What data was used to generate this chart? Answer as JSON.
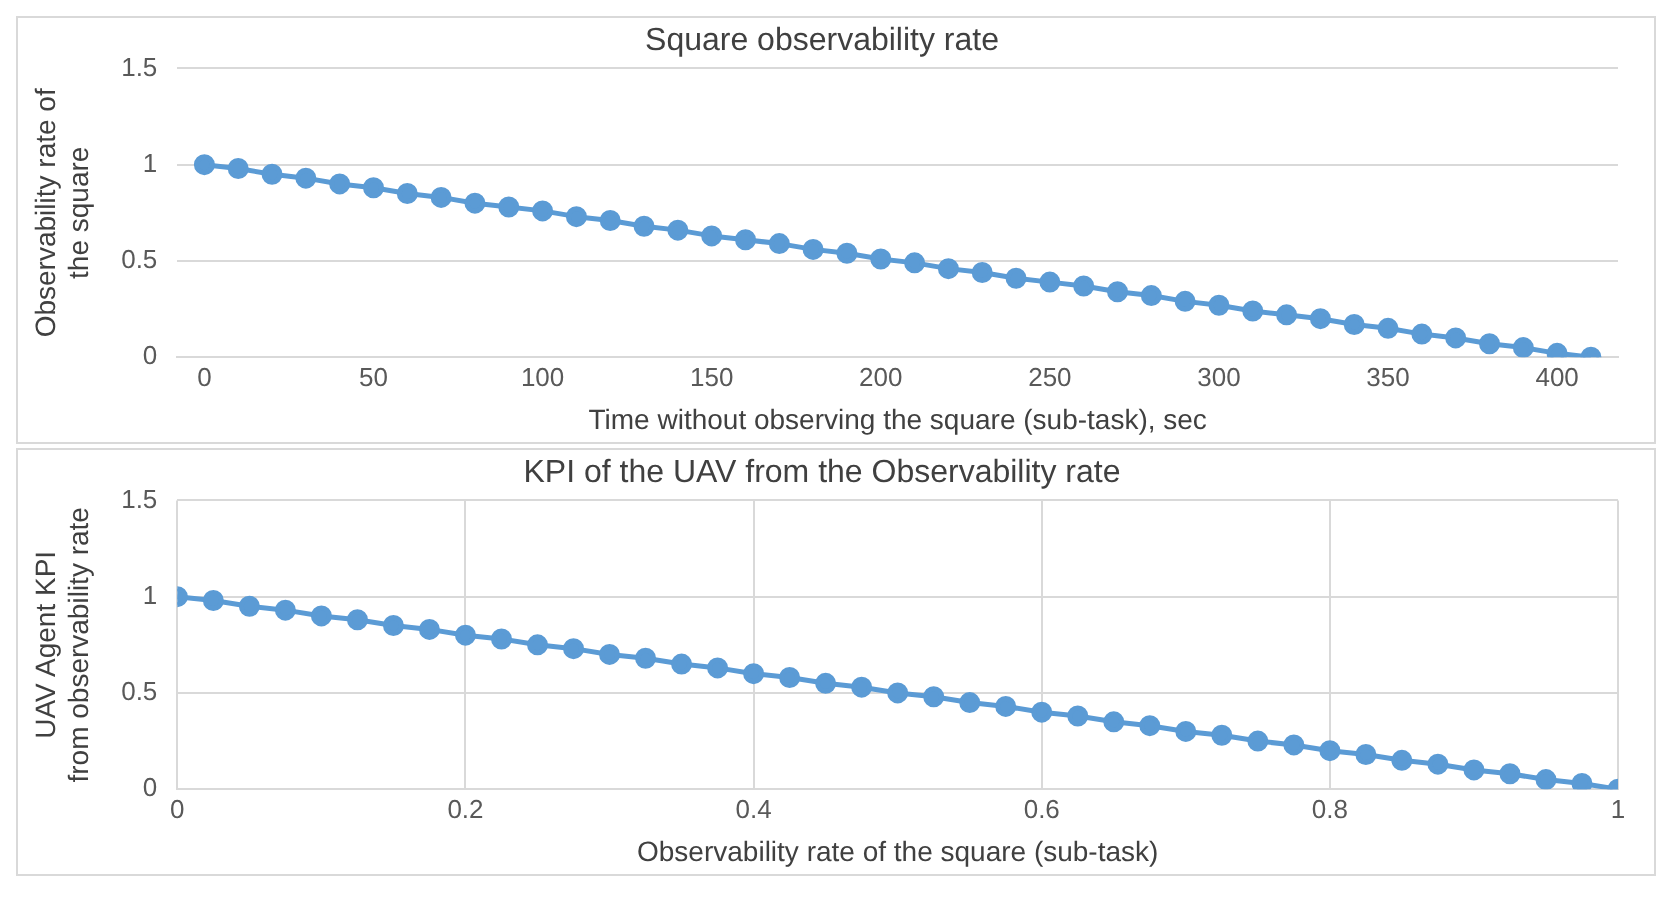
{
  "chart_data": [
    {
      "type": "line",
      "title": "Square observability rate",
      "xlabel": "Time without observing the square (sub-task), sec",
      "ylabel": "Observability rate of the square",
      "x": [
        0,
        10,
        20,
        30,
        40,
        50,
        60,
        70,
        80,
        90,
        100,
        110,
        120,
        130,
        140,
        150,
        160,
        170,
        180,
        190,
        200,
        210,
        220,
        230,
        240,
        250,
        260,
        270,
        280,
        290,
        300,
        310,
        320,
        330,
        340,
        350,
        360,
        370,
        380,
        390,
        400,
        410
      ],
      "series": [
        {
          "color": "#5b9bd5",
          "values": [
            1,
            0.98,
            0.95,
            0.93,
            0.9,
            0.88,
            0.85,
            0.83,
            0.8,
            0.78,
            0.76,
            0.73,
            0.71,
            0.68,
            0.66,
            0.63,
            0.61,
            0.59,
            0.56,
            0.54,
            0.51,
            0.49,
            0.46,
            0.44,
            0.41,
            0.39,
            0.37,
            0.34,
            0.32,
            0.29,
            0.27,
            0.24,
            0.22,
            0.2,
            0.17,
            0.15,
            0.12,
            0.1,
            0.07,
            0.05,
            0.02,
            0
          ]
        }
      ],
      "xlim": [
        -8,
        418
      ],
      "xticks": [
        0,
        50,
        100,
        150,
        200,
        250,
        300,
        350,
        400
      ],
      "ylim": [
        0,
        1.5
      ],
      "yticks": [
        0,
        0.5,
        1,
        1.5
      ],
      "grid": "y",
      "legend": false,
      "marker": "circle",
      "line_style": "solid"
    },
    {
      "type": "line",
      "title": "KPI of the UAV from the Observability rate",
      "xlabel": "Observability rate of the square (sub-task)",
      "ylabel": "UAV Agent KPI from observability rate",
      "x": [
        0,
        0.025,
        0.05,
        0.075,
        0.1,
        0.125,
        0.15,
        0.175,
        0.2,
        0.225,
        0.25,
        0.275,
        0.3,
        0.325,
        0.35,
        0.375,
        0.4,
        0.425,
        0.45,
        0.475,
        0.5,
        0.525,
        0.55,
        0.575,
        0.6,
        0.625,
        0.65,
        0.675,
        0.7,
        0.725,
        0.75,
        0.775,
        0.8,
        0.825,
        0.85,
        0.875,
        0.9,
        0.925,
        0.95,
        0.975,
        1
      ],
      "series": [
        {
          "color": "#5b9bd5",
          "values": [
            1,
            0.98,
            0.95,
            0.93,
            0.9,
            0.88,
            0.85,
            0.83,
            0.8,
            0.78,
            0.75,
            0.73,
            0.7,
            0.68,
            0.65,
            0.63,
            0.6,
            0.58,
            0.55,
            0.53,
            0.5,
            0.48,
            0.45,
            0.43,
            0.4,
            0.38,
            0.35,
            0.33,
            0.3,
            0.28,
            0.25,
            0.23,
            0.2,
            0.18,
            0.15,
            0.13,
            0.1,
            0.08,
            0.05,
            0.03,
            0
          ]
        }
      ],
      "xlim": [
        0,
        1
      ],
      "xticks": [
        0,
        0.2,
        0.4,
        0.6,
        0.8,
        1
      ],
      "ylim": [
        0,
        1.5
      ],
      "yticks": [
        0,
        0.5,
        1,
        1.5
      ],
      "grid": true,
      "legend": false,
      "marker": "circle",
      "line_style": "solid"
    }
  ]
}
